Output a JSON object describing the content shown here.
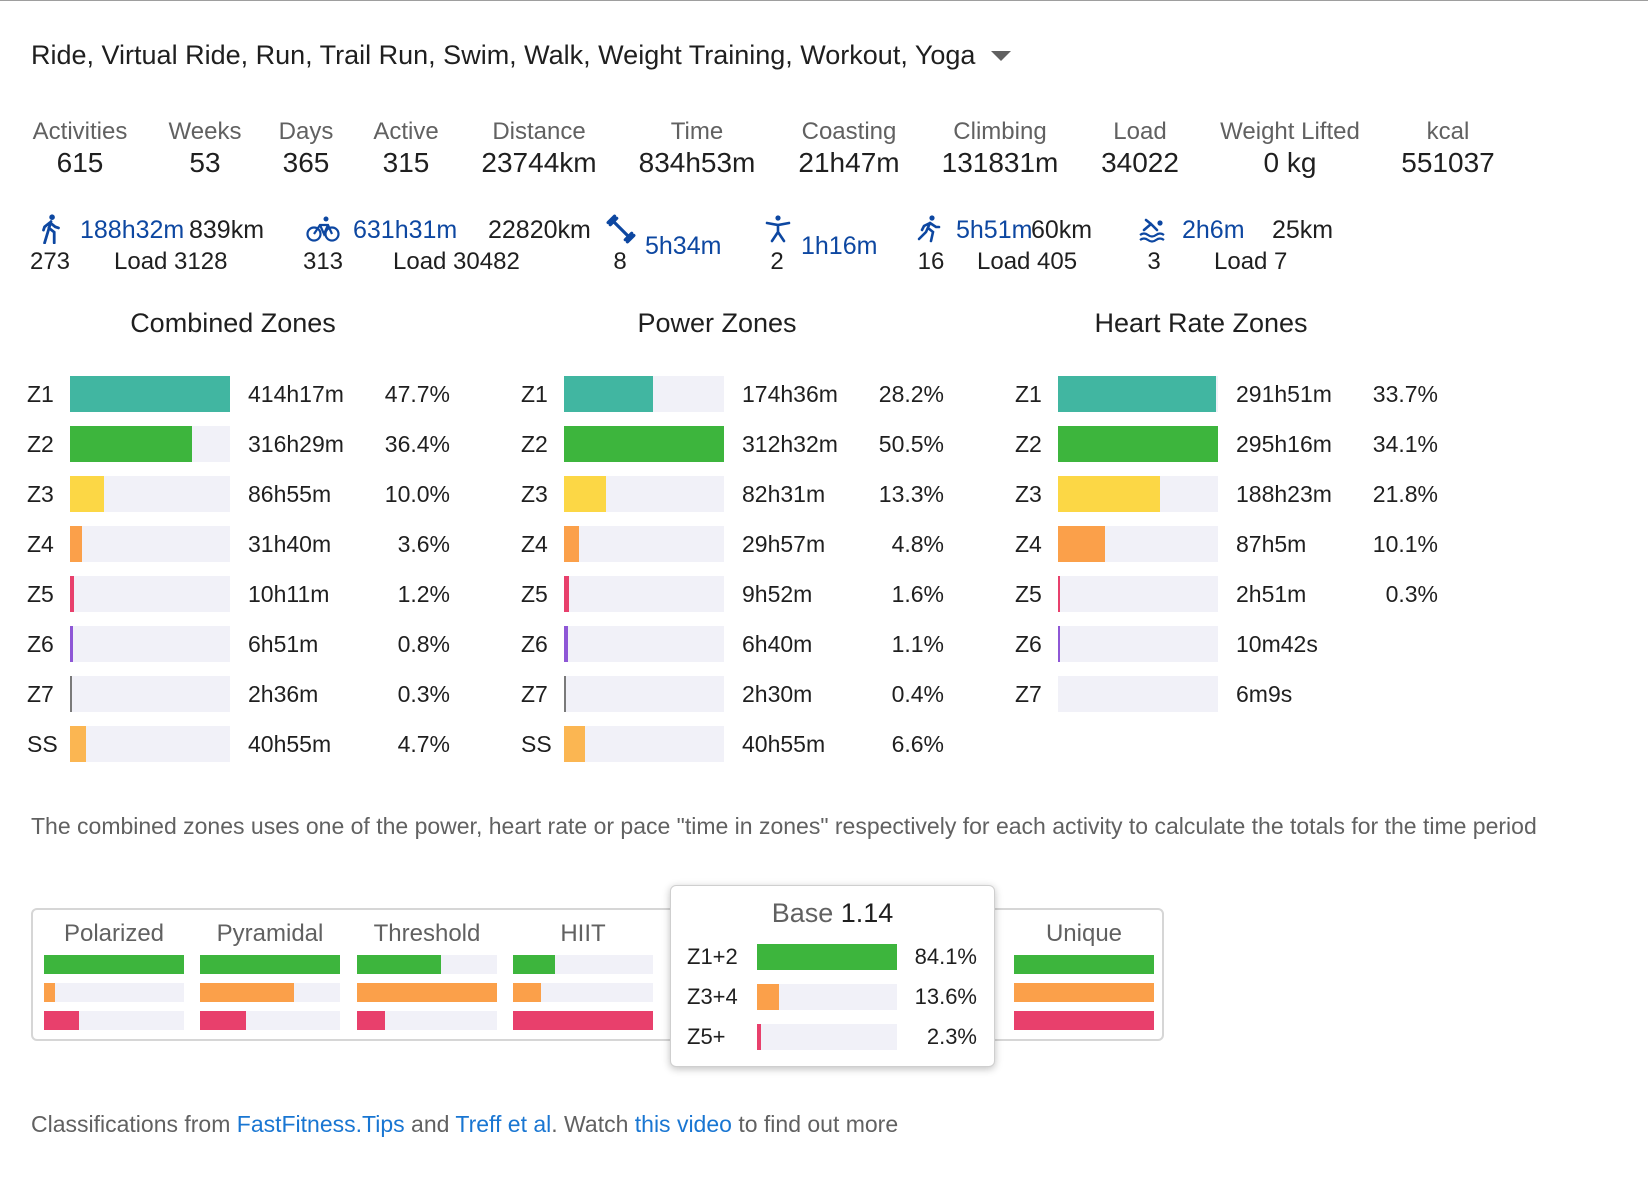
{
  "filter": {
    "label": "Ride, Virtual Ride, Run, Trail Run, Swim, Walk, Weight Training, Workout, Yoga"
  },
  "stats": [
    {
      "label": "Activities",
      "value": "615"
    },
    {
      "label": "Weeks",
      "value": "53"
    },
    {
      "label": "Days",
      "value": "365"
    },
    {
      "label": "Active",
      "value": "315"
    },
    {
      "label": "Distance",
      "value": "23744km"
    },
    {
      "label": "Time",
      "value": "834h53m"
    },
    {
      "label": "Coasting",
      "value": "21h47m"
    },
    {
      "label": "Climbing",
      "value": "131831m"
    },
    {
      "label": "Load",
      "value": "34022"
    },
    {
      "label": "Weight Lifted",
      "value": "0 kg"
    },
    {
      "label": "kcal",
      "value": "551037"
    }
  ],
  "sports": [
    {
      "icon": "walk-icon",
      "time": "188h32m",
      "distance": "839km",
      "count": "273",
      "load": "Load 3128"
    },
    {
      "icon": "bike-icon",
      "time": "631h31m",
      "distance": "22820km",
      "count": "313",
      "load": "Load 30482"
    },
    {
      "icon": "dumbbell-icon",
      "time": "5h34m",
      "distance": "",
      "count": "8",
      "load": ""
    },
    {
      "icon": "yoga-icon",
      "time": "1h16m",
      "distance": "",
      "count": "2",
      "load": ""
    },
    {
      "icon": "run-icon",
      "time": "5h51m",
      "distance": "60km",
      "count": "16",
      "load": "Load 405"
    },
    {
      "icon": "swim-icon",
      "time": "2h6m",
      "distance": "25km",
      "count": "3",
      "load": "Load 7"
    }
  ],
  "zone_colors": {
    "Z1": "#41b6a1",
    "Z2": "#3db53d",
    "Z3": "#fcd745",
    "Z4": "#fba04a",
    "Z5": "#e8406c",
    "Z6": "#8e57d6",
    "Z7": "#7a7a7a",
    "SS": "#fbb652"
  },
  "combined_zones": {
    "title": "Combined Zones",
    "rows": [
      {
        "zone": "Z1",
        "time": "414h17m",
        "pct": "47.7%",
        "fill": 1.0
      },
      {
        "zone": "Z2",
        "time": "316h29m",
        "pct": "36.4%",
        "fill": 0.763
      },
      {
        "zone": "Z3",
        "time": "86h55m",
        "pct": "10.0%",
        "fill": 0.21
      },
      {
        "zone": "Z4",
        "time": "31h40m",
        "pct": "3.6%",
        "fill": 0.076
      },
      {
        "zone": "Z5",
        "time": "10h11m",
        "pct": "1.2%",
        "fill": 0.025
      },
      {
        "zone": "Z6",
        "time": "6h51m",
        "pct": "0.8%",
        "fill": 0.017
      },
      {
        "zone": "Z7",
        "time": "2h36m",
        "pct": "0.3%",
        "fill": 0.006
      },
      {
        "zone": "SS",
        "time": "40h55m",
        "pct": "4.7%",
        "fill": 0.099
      }
    ]
  },
  "power_zones": {
    "title": "Power Zones",
    "rows": [
      {
        "zone": "Z1",
        "time": "174h36m",
        "pct": "28.2%",
        "fill": 0.558
      },
      {
        "zone": "Z2",
        "time": "312h32m",
        "pct": "50.5%",
        "fill": 1.0
      },
      {
        "zone": "Z3",
        "time": "82h31m",
        "pct": "13.3%",
        "fill": 0.263
      },
      {
        "zone": "Z4",
        "time": "29h57m",
        "pct": "4.8%",
        "fill": 0.095
      },
      {
        "zone": "Z5",
        "time": "9h52m",
        "pct": "1.6%",
        "fill": 0.032
      },
      {
        "zone": "Z6",
        "time": "6h40m",
        "pct": "1.1%",
        "fill": 0.022
      },
      {
        "zone": "Z7",
        "time": "2h30m",
        "pct": "0.4%",
        "fill": 0.008
      },
      {
        "zone": "SS",
        "time": "40h55m",
        "pct": "6.6%",
        "fill": 0.131
      }
    ]
  },
  "hr_zones": {
    "title": "Heart Rate Zones",
    "rows": [
      {
        "zone": "Z1",
        "time": "291h51m",
        "pct": "33.7%",
        "fill": 0.988
      },
      {
        "zone": "Z2",
        "time": "295h16m",
        "pct": "34.1%",
        "fill": 1.0
      },
      {
        "zone": "Z3",
        "time": "188h23m",
        "pct": "21.8%",
        "fill": 0.639
      },
      {
        "zone": "Z4",
        "time": "87h5m",
        "pct": "10.1%",
        "fill": 0.296
      },
      {
        "zone": "Z5",
        "time": "2h51m",
        "pct": "0.3%",
        "fill": 0.01
      },
      {
        "zone": "Z6",
        "time": "10m42s",
        "pct": "",
        "fill": 0.006
      },
      {
        "zone": "Z7",
        "time": "6m9s",
        "pct": "",
        "fill": 0.0
      }
    ]
  },
  "note": "The combined zones uses one of the power, heart rate or pace \"time in zones\" respectively for each activity to calculate the totals for the time period",
  "models": {
    "colors": [
      "#3db53d",
      "#fba04a",
      "#e8406c"
    ],
    "items": [
      {
        "name": "Polarized",
        "fills": [
          1.0,
          0.08,
          0.25
        ]
      },
      {
        "name": "Pyramidal",
        "fills": [
          1.0,
          0.67,
          0.33
        ]
      },
      {
        "name": "Threshold",
        "fills": [
          0.6,
          1.0,
          0.2
        ]
      },
      {
        "name": "HIIT",
        "fills": [
          0.3,
          0.2,
          1.0
        ]
      },
      {
        "name": "Unique",
        "fills": [
          1.0,
          1.0,
          1.0
        ]
      }
    ]
  },
  "popup": {
    "label": "Base",
    "score": "1.14",
    "rows": [
      {
        "label": "Z1+2",
        "pct": "84.1%",
        "fill": 1.0,
        "color": "#3db53d"
      },
      {
        "label": "Z3+4",
        "pct": "13.6%",
        "fill": 0.16,
        "color": "#fba04a"
      },
      {
        "label": "Z5+",
        "pct": "2.3%",
        "fill": 0.03,
        "color": "#e8406c"
      }
    ]
  },
  "footer": {
    "prefix": "Classifications from ",
    "link1": "FastFitness.Tips",
    "and": " and ",
    "link2": "Treff et al",
    "mid": ". Watch ",
    "link3": "this video",
    "suffix": " to find out more"
  }
}
